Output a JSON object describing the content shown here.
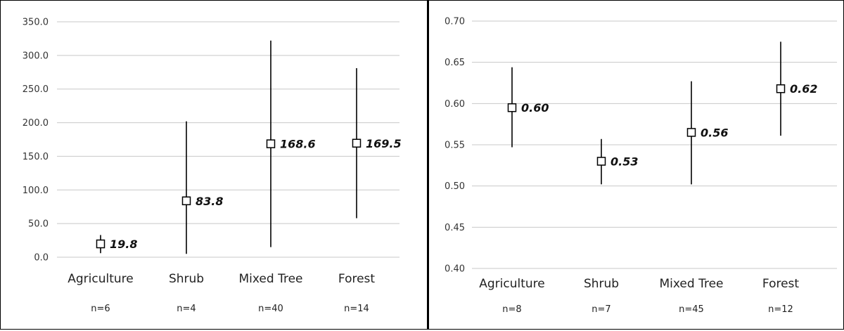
{
  "chart_data": [
    {
      "type": "scatter",
      "categories": [
        "Agriculture",
        "Shrub",
        "Mixed Tree",
        "Forest"
      ],
      "n_labels": [
        "n=6",
        "n=4",
        "n=40",
        "n=14"
      ],
      "values": [
        19.8,
        83.8,
        168.6,
        169.5
      ],
      "data_labels": [
        "19.8",
        "83.8",
        "168.6",
        "169.5"
      ],
      "error_low": [
        6,
        5,
        15,
        58
      ],
      "error_high": [
        33,
        202,
        322,
        281
      ],
      "ylim": [
        0,
        350
      ],
      "yticks": [
        0,
        50,
        100,
        150,
        200,
        250,
        300,
        350
      ],
      "ytick_labels": [
        "0.0",
        "50.0",
        "100.0",
        "150.0",
        "200.0",
        "250.0",
        "300.0",
        "350.0"
      ],
      "grid": true
    },
    {
      "type": "scatter",
      "categories": [
        "Agriculture",
        "Shrub",
        "Mixed Tree",
        "Forest"
      ],
      "n_labels": [
        "n=8",
        "n=7",
        "n=45",
        "n=12"
      ],
      "values": [
        0.595,
        0.53,
        0.565,
        0.618
      ],
      "data_labels": [
        "0.60",
        "0.53",
        "0.56",
        "0.62"
      ],
      "error_low": [
        0.547,
        0.502,
        0.502,
        0.561
      ],
      "error_high": [
        0.644,
        0.557,
        0.627,
        0.675
      ],
      "ylim": [
        0.4,
        0.7
      ],
      "yticks": [
        0.4,
        0.45,
        0.5,
        0.55,
        0.6,
        0.65,
        0.7
      ],
      "ytick_labels": [
        "0.40",
        "0.45",
        "0.50",
        "0.55",
        "0.60",
        "0.65",
        "0.70"
      ],
      "grid": true
    }
  ]
}
